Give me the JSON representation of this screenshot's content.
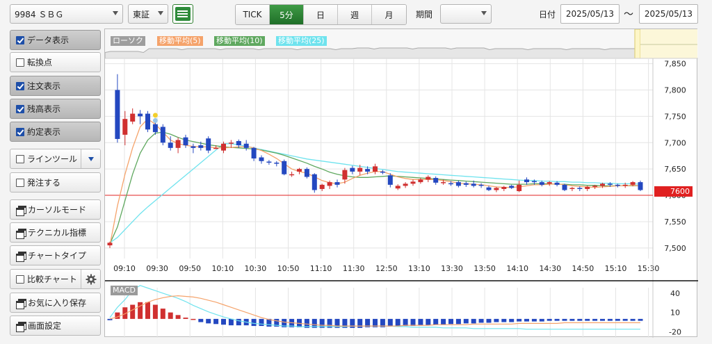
{
  "toolbar": {
    "stock_value": "9984 ＳＢＧ",
    "market_value": "東証",
    "list_icon": "list-icon",
    "intervals": [
      "TICK",
      "5分",
      "日",
      "週",
      "月"
    ],
    "active_interval": "5分",
    "period_label": "期間",
    "period_value": "",
    "date_label": "日付",
    "date_from": "2025/05/13",
    "date_sep": "〜",
    "date_to": "2025/05/13"
  },
  "sidebar": {
    "items": [
      {
        "label": "データ表示",
        "checked": true,
        "type": "check"
      },
      {
        "label": "転換点",
        "checked": false,
        "type": "check"
      },
      {
        "label": "注文表示",
        "checked": true,
        "type": "check"
      },
      {
        "label": "残高表示",
        "checked": true,
        "type": "check"
      },
      {
        "label": "約定表示",
        "checked": true,
        "type": "check"
      },
      {
        "label": "ラインツール",
        "checked": false,
        "type": "check"
      },
      {
        "label": "発注する",
        "checked": false,
        "type": "check"
      },
      {
        "label": "カーソルモード",
        "type": "window"
      },
      {
        "label": "テクニカル指標",
        "type": "window"
      },
      {
        "label": "チャートタイプ",
        "type": "window"
      },
      {
        "label": "比較チャート",
        "checked": false,
        "type": "check"
      },
      {
        "label": "お気に入り保存",
        "type": "window"
      },
      {
        "label": "画面設定",
        "type": "window"
      }
    ]
  },
  "chart": {
    "legend": [
      "ローソク",
      "移動平均(5)",
      "移動平均(10)",
      "移動平均(25)"
    ],
    "legend_colors": [
      "#9e9e9e",
      "#f5a36b",
      "#5fa85f",
      "#6fe3ee"
    ],
    "current_price_label": "7600",
    "macd_label": "MACD",
    "colors": {
      "up": "#d03030",
      "down": "#2448c0",
      "ma5": "#f5a36b",
      "ma10": "#5fa85f",
      "ma25": "#6fe3ee",
      "current": "#e02020"
    }
  },
  "chart_data": {
    "type": "candlestick",
    "price_axis": {
      "ticks": [
        "7,850",
        "7,800",
        "7,750",
        "7,700",
        "7,650",
        "7,600",
        "7,550",
        "7,500"
      ],
      "ylim": [
        7480,
        7860
      ]
    },
    "time_labels": [
      "09:10",
      "09:30",
      "09:50",
      "10:10",
      "10:30",
      "10:50",
      "11:10",
      "11:30",
      "12:50",
      "13:10",
      "13:30",
      "13:50",
      "14:10",
      "14:30",
      "14:50",
      "15:10",
      "15:30"
    ],
    "current_price": 7600,
    "candles": [
      [
        7505,
        7510,
        7500,
        7512
      ],
      [
        7800,
        7707,
        7700,
        7830
      ],
      [
        7715,
        7745,
        7695,
        7760
      ],
      [
        7740,
        7755,
        7735,
        7765
      ],
      [
        7755,
        7750,
        7735,
        7762
      ],
      [
        7755,
        7725,
        7720,
        7760
      ],
      [
        7735,
        7720,
        7715,
        7745
      ],
      [
        7730,
        7700,
        7695,
        7735
      ],
      [
        7700,
        7690,
        7685,
        7712
      ],
      [
        7690,
        7705,
        7680,
        7710
      ],
      [
        7710,
        7695,
        7690,
        7715
      ],
      [
        7693,
        7690,
        7680,
        7698
      ],
      [
        7695,
        7690,
        7685,
        7702
      ],
      [
        7708,
        7685,
        7680,
        7712
      ],
      [
        7690,
        7690,
        7688,
        7695
      ],
      [
        7685,
        7698,
        7680,
        7702
      ],
      [
        7700,
        7700,
        7690,
        7705
      ],
      [
        7703,
        7695,
        7690,
        7706
      ],
      [
        7698,
        7690,
        7685,
        7705
      ],
      [
        7690,
        7670,
        7665,
        7692
      ],
      [
        7672,
        7665,
        7660,
        7676
      ],
      [
        7664,
        7662,
        7658,
        7667
      ],
      [
        7662,
        7660,
        7655,
        7665
      ],
      [
        7665,
        7640,
        7638,
        7668
      ],
      [
        7640,
        7640,
        7635,
        7645
      ],
      [
        7645,
        7650,
        7640,
        7652
      ],
      [
        7650,
        7635,
        7632,
        7653
      ],
      [
        7640,
        7610,
        7605,
        7642
      ],
      [
        7612,
        7620,
        7608,
        7622
      ],
      [
        7618,
        7625,
        7612,
        7628
      ],
      [
        7625,
        7620,
        7615,
        7630
      ],
      [
        7630,
        7648,
        7622,
        7652
      ],
      [
        7652,
        7645,
        7640,
        7656
      ],
      [
        7645,
        7652,
        7638,
        7658
      ],
      [
        7650,
        7645,
        7640,
        7655
      ],
      [
        7645,
        7655,
        7640,
        7660
      ],
      [
        7645,
        7643,
        7640,
        7648
      ],
      [
        7638,
        7620,
        7615,
        7642
      ],
      [
        7613,
        7618,
        7610,
        7621
      ],
      [
        7618,
        7622,
        7614,
        7625
      ],
      [
        7622,
        7626,
        7618,
        7630
      ],
      [
        7625,
        7630,
        7622,
        7633
      ],
      [
        7630,
        7635,
        7625,
        7638
      ],
      [
        7633,
        7624,
        7620,
        7636
      ],
      [
        7625,
        7625,
        7620,
        7630
      ],
      [
        7623,
        7622,
        7618,
        7627
      ],
      [
        7625,
        7618,
        7615,
        7628
      ],
      [
        7623,
        7620,
        7616,
        7626
      ],
      [
        7622,
        7618,
        7615,
        7628
      ],
      [
        7620,
        7618,
        7614,
        7623
      ],
      [
        7615,
        7610,
        7608,
        7618
      ],
      [
        7610,
        7614,
        7606,
        7616
      ],
      [
        7612,
        7616,
        7608,
        7618
      ],
      [
        7618,
        7614,
        7612,
        7620
      ],
      [
        7608,
        7620,
        7606,
        7628
      ],
      [
        7630,
        7625,
        7620,
        7634
      ],
      [
        7627,
        7625,
        7620,
        7630
      ],
      [
        7625,
        7620,
        7617,
        7628
      ],
      [
        7622,
        7625,
        7618,
        7627
      ],
      [
        7624,
        7620,
        7617,
        7627
      ],
      [
        7620,
        7610,
        7608,
        7622
      ],
      [
        7612,
        7614,
        7608,
        7616
      ],
      [
        7614,
        7612,
        7608,
        7617
      ],
      [
        7612,
        7616,
        7608,
        7618
      ],
      [
        7616,
        7618,
        7612,
        7620
      ],
      [
        7618,
        7622,
        7614,
        7624
      ],
      [
        7622,
        7620,
        7616,
        7625
      ],
      [
        7620,
        7618,
        7615,
        7622
      ],
      [
        7620,
        7620,
        7614,
        7624
      ],
      [
        7620,
        7625,
        7617,
        7627
      ],
      [
        7625,
        7610,
        7608,
        7628
      ]
    ],
    "ma5": [
      7505,
      7580,
      7640,
      7690,
      7730,
      7745,
      7735,
      7720,
      7705,
      7698,
      7695,
      7693,
      7692,
      7692,
      7690,
      7690,
      7691,
      7692,
      7693,
      7690,
      7685,
      7678,
      7670,
      7660,
      7650,
      7645,
      7642,
      7635,
      7628,
      7624,
      7622,
      7625,
      7632,
      7638,
      7642,
      7645,
      7645,
      7640,
      7635,
      7632,
      7630,
      7630,
      7630,
      7630,
      7628,
      7626,
      7623,
      7622,
      7621,
      7620,
      7618,
      7616,
      7615,
      7615,
      7616,
      7618,
      7620,
      7620,
      7621,
      7622,
      7620,
      7618,
      7617,
      7616,
      7615,
      7616,
      7617,
      7618,
      7618,
      7619,
      7618
    ],
    "ma10": [
      7508,
      7540,
      7590,
      7640,
      7680,
      7705,
      7718,
      7720,
      7716,
      7710,
      7705,
      7702,
      7699,
      7696,
      7694,
      7692,
      7691,
      7690,
      7689,
      7688,
      7686,
      7683,
      7680,
      7676,
      7671,
      7666,
      7661,
      7655,
      7650,
      7644,
      7640,
      7637,
      7635,
      7634,
      7634,
      7635,
      7636,
      7637,
      7636,
      7635,
      7634,
      7633,
      7632,
      7631,
      7630,
      7629,
      7628,
      7627,
      7626,
      7625,
      7624,
      7623,
      7622,
      7621,
      7621,
      7621,
      7622,
      7622,
      7622,
      7621,
      7621,
      7620,
      7620,
      7619,
      7619,
      7618,
      7618,
      7618,
      7618,
      7618,
      7618
    ],
    "ma25": [
      7510,
      7520,
      7535,
      7550,
      7565,
      7578,
      7590,
      7602,
      7614,
      7626,
      7638,
      7650,
      7662,
      7674,
      7686,
      7698,
      7698,
      7696,
      7693,
      7690,
      7687,
      7684,
      7681,
      7678,
      7675,
      7672,
      7669,
      7667,
      7665,
      7663,
      7661,
      7659,
      7657,
      7655,
      7653,
      7651,
      7649,
      7647,
      7645,
      7644,
      7643,
      7642,
      7641,
      7640,
      7639,
      7638,
      7637,
      7636,
      7635,
      7634,
      7633,
      7632,
      7631,
      7630,
      7629,
      7628,
      7628,
      7627,
      7627,
      7626,
      7626,
      7625,
      7625,
      7624,
      7624,
      7623,
      7623,
      7622,
      7622,
      7622,
      7621
    ],
    "macd_axis": {
      "ticks": [
        "40",
        "10",
        "-20"
      ],
      "ylim": [
        -25,
        55
      ]
    },
    "macd_hist": [
      -2,
      10,
      18,
      22,
      26,
      26,
      22,
      16,
      10,
      6,
      2,
      0,
      -5,
      -7,
      -8,
      -9,
      -10,
      -10,
      -10,
      -11,
      -11,
      -12,
      -12,
      -13,
      -13,
      -13,
      -14,
      -14,
      -14,
      -14,
      -14,
      -14,
      -14,
      -14,
      -13,
      -13,
      -13,
      -12,
      -12,
      -11,
      -11,
      -10,
      -10,
      -9,
      -9,
      -8,
      -8,
      -7,
      -7,
      -6,
      -6,
      -5,
      -5,
      -5,
      -4,
      -4,
      -4,
      -4,
      -3,
      -3,
      -3,
      -3,
      -3,
      -3,
      -3,
      -3,
      -3,
      -3,
      -3,
      -3,
      -3
    ],
    "macd_line": [
      2,
      18,
      30,
      45,
      52,
      48,
      44,
      40,
      36,
      32,
      27,
      21,
      16,
      11,
      7,
      3,
      0,
      -3,
      -5,
      -7,
      -8,
      -9,
      -10,
      -11,
      -11,
      -12,
      -12,
      -12,
      -12,
      -12,
      -12,
      -12,
      -11,
      -11,
      -11,
      -11,
      -11,
      -11,
      -12,
      -12,
      -13,
      -13,
      -13,
      -13,
      -14,
      -14,
      -14,
      -14,
      -15,
      -15,
      -15,
      -15,
      -15,
      -15,
      -15,
      -16,
      -16,
      -16,
      -16,
      -16,
      -16,
      -16,
      -16,
      -16,
      -16,
      -16,
      -16,
      -16,
      -16,
      -16,
      -16
    ],
    "macd_signal": [
      0,
      3,
      8,
      14,
      20,
      26,
      30,
      33,
      35,
      36,
      35,
      34,
      32,
      29,
      26,
      22,
      18,
      14,
      10,
      6,
      2,
      -1,
      -3,
      -5,
      -6,
      -7,
      -8,
      -9,
      -10,
      -10,
      -11,
      -11,
      -11,
      -11,
      -11,
      -11,
      -11,
      -11,
      -11,
      -10,
      -10,
      -10,
      -10,
      -9,
      -9,
      -9,
      -9,
      -9,
      -8,
      -8,
      -8,
      -8,
      -8,
      -8,
      -7,
      -7,
      -7,
      -7,
      -7,
      -7,
      -6,
      -6,
      -6,
      -6,
      -6,
      -6,
      -6,
      -6,
      -6,
      -6,
      -6
    ]
  }
}
